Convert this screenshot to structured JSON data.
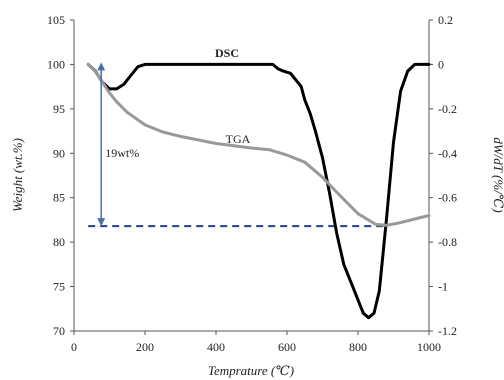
{
  "chart_data": {
    "type": "line",
    "title": "",
    "xlabel": "Temprature (℃)",
    "ylabel_left": "Weight (wt.%)",
    "ylabel_right": "dW/dT (%/℃)",
    "xlim": [
      0,
      1000
    ],
    "ylim_left": [
      70,
      105
    ],
    "ylim_right": [
      -1.2,
      0.2
    ],
    "x_ticks": [
      "0",
      "200",
      "400",
      "600",
      "800",
      "1000"
    ],
    "y_left_ticks": [
      "70",
      "75",
      "80",
      "85",
      "90",
      "95",
      "100",
      "105"
    ],
    "y_right_ticks": [
      "-1.2",
      "-1",
      "-0.8",
      "-0.6",
      "-0.4",
      "-0.2",
      "0",
      "0.2"
    ],
    "grid": false,
    "legend": "none",
    "series": [
      {
        "name": "DSC",
        "axis": "right",
        "color": "#000000",
        "points": [
          [
            40,
            0
          ],
          [
            60,
            -0.03
          ],
          [
            80,
            -0.08
          ],
          [
            100,
            -0.11
          ],
          [
            120,
            -0.11
          ],
          [
            140,
            -0.09
          ],
          [
            160,
            -0.05
          ],
          [
            180,
            -0.01
          ],
          [
            200,
            0
          ],
          [
            560,
            0
          ],
          [
            575,
            -0.02
          ],
          [
            590,
            -0.03
          ],
          [
            610,
            -0.04
          ],
          [
            625,
            -0.07
          ],
          [
            640,
            -0.1
          ],
          [
            650,
            -0.16
          ],
          [
            665,
            -0.22
          ],
          [
            680,
            -0.3
          ],
          [
            700,
            -0.42
          ],
          [
            720,
            -0.58
          ],
          [
            740,
            -0.76
          ],
          [
            760,
            -0.9
          ],
          [
            780,
            -0.98
          ],
          [
            800,
            -1.06
          ],
          [
            815,
            -1.12
          ],
          [
            830,
            -1.14
          ],
          [
            845,
            -1.12
          ],
          [
            860,
            -1.02
          ],
          [
            880,
            -0.7
          ],
          [
            900,
            -0.35
          ],
          [
            920,
            -0.12
          ],
          [
            940,
            -0.03
          ],
          [
            960,
            0
          ],
          [
            1000,
            0
          ]
        ]
      },
      {
        "name": "TGA",
        "axis": "left",
        "color": "#999999",
        "points": [
          [
            40,
            100
          ],
          [
            60,
            99.2
          ],
          [
            80,
            98
          ],
          [
            100,
            96.8
          ],
          [
            120,
            95.8
          ],
          [
            150,
            94.6
          ],
          [
            200,
            93.2
          ],
          [
            250,
            92.4
          ],
          [
            300,
            91.9
          ],
          [
            400,
            91.1
          ],
          [
            500,
            90.6
          ],
          [
            550,
            90.4
          ],
          [
            600,
            89.8
          ],
          [
            650,
            89
          ],
          [
            700,
            87.3
          ],
          [
            750,
            85.2
          ],
          [
            800,
            83.2
          ],
          [
            850,
            82
          ],
          [
            880,
            81.9
          ],
          [
            920,
            82.2
          ],
          [
            960,
            82.6
          ],
          [
            1000,
            83
          ]
        ]
      }
    ],
    "reference_line": {
      "axis": "left",
      "y": 81.8,
      "x_from": 40,
      "x_to": 880,
      "color": "#1f3f8f",
      "style": "dashed"
    },
    "annotation_arrow": {
      "x": 40,
      "y_from": 100,
      "y_to": 81.8,
      "color": "#4a6fa8",
      "label": "19wt%"
    }
  }
}
